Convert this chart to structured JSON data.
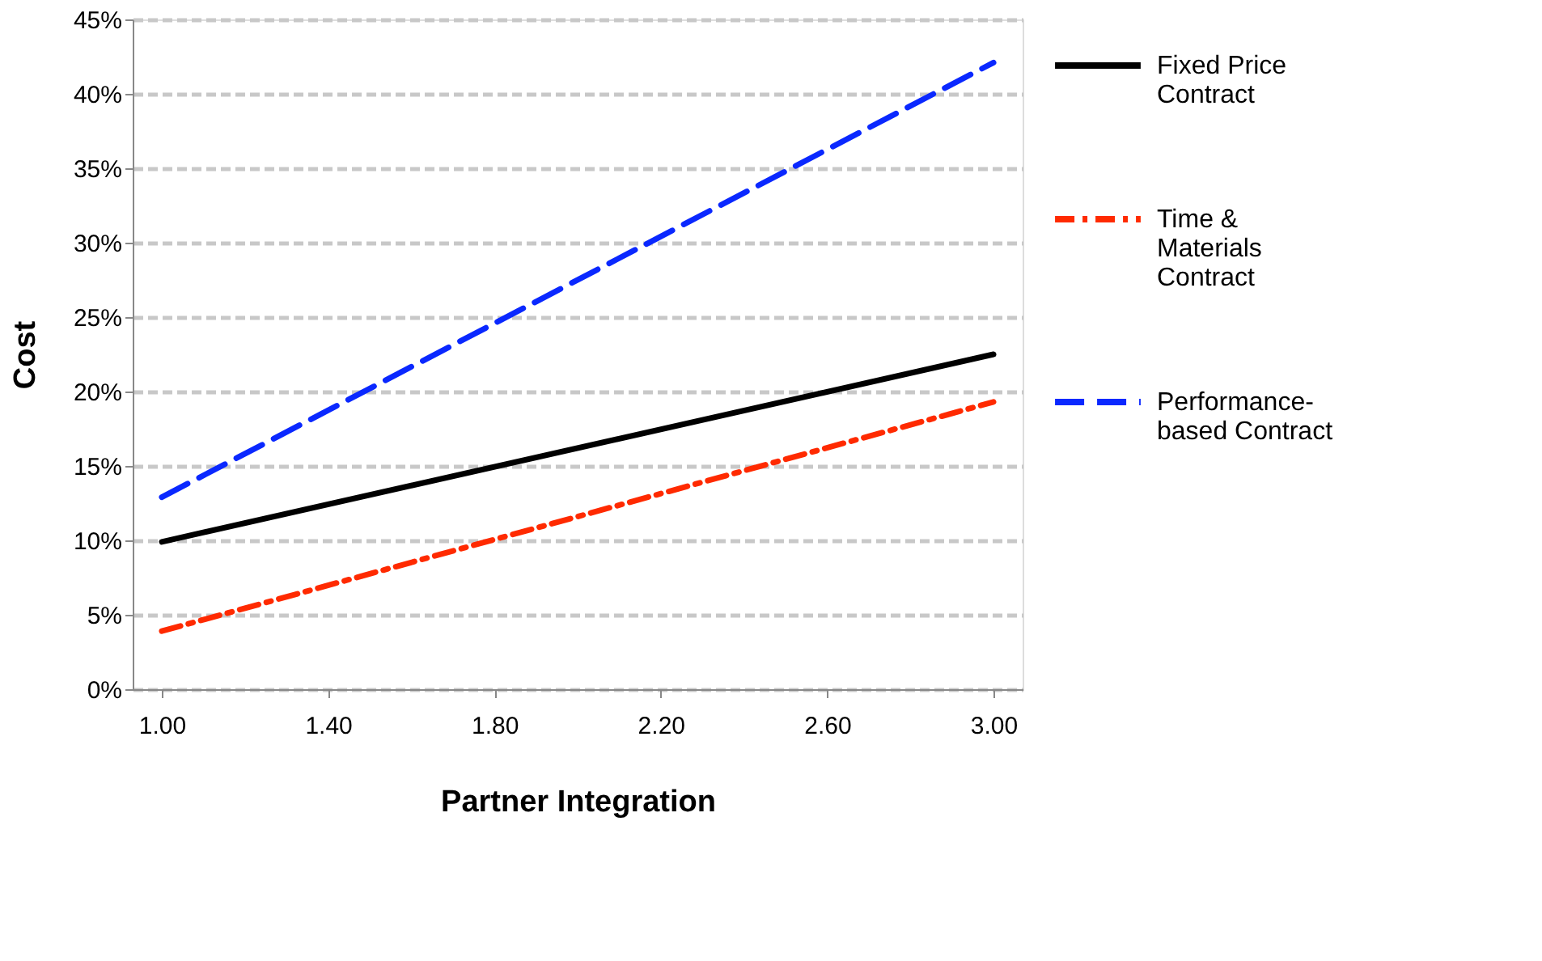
{
  "chart_data": {
    "type": "line",
    "xlabel": "Partner Integration",
    "ylabel": "Cost",
    "xlim": [
      0.93,
      3.07
    ],
    "xticks": [
      {
        "value": 1.0,
        "label": "1.00"
      },
      {
        "value": 1.4,
        "label": "1.40"
      },
      {
        "value": 1.8,
        "label": "1.80"
      },
      {
        "value": 2.2,
        "label": "2.20"
      },
      {
        "value": 2.6,
        "label": "2.60"
      },
      {
        "value": 3.0,
        "label": "3.00"
      }
    ],
    "ylim": [
      0,
      45
    ],
    "yticks": [
      {
        "value": 0,
        "label": "0%"
      },
      {
        "value": 5,
        "label": "5%"
      },
      {
        "value": 10,
        "label": "10%"
      },
      {
        "value": 15,
        "label": "15%"
      },
      {
        "value": 20,
        "label": "20%"
      },
      {
        "value": 25,
        "label": "25%"
      },
      {
        "value": 30,
        "label": "30%"
      },
      {
        "value": 35,
        "label": "35%"
      },
      {
        "value": 40,
        "label": "40%"
      },
      {
        "value": 45,
        "label": "45%"
      }
    ],
    "x": [
      1.0,
      3.0
    ],
    "series": [
      {
        "name": "Fixed Price Contract",
        "color": "#000000",
        "line_style": "solid",
        "values": [
          9.9,
          22.5
        ]
      },
      {
        "name": "Time & Materials Contract",
        "color": "#ff2a00",
        "line_style": "dashdot",
        "values": [
          3.9,
          19.3
        ]
      },
      {
        "name": "Performance-based Contract",
        "color": "#0a28ff",
        "line_style": "dashed",
        "values": [
          12.9,
          42.1
        ]
      }
    ],
    "grid": "y",
    "legend": "right",
    "marker": "none"
  }
}
